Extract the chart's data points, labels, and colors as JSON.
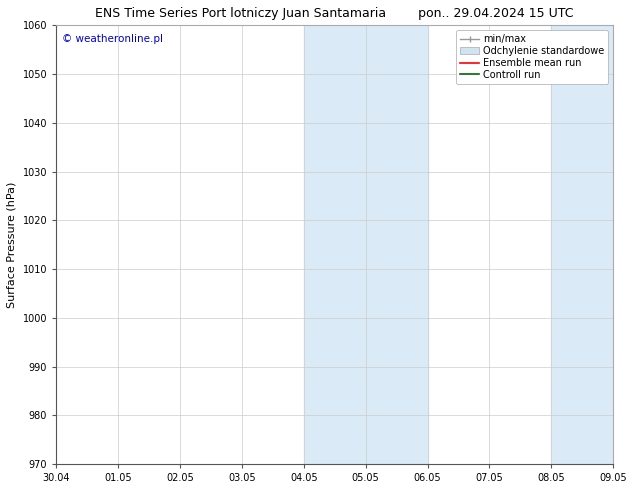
{
  "title_left": "ENS Time Series Port lotniczy Juan Santamaria",
  "title_right": "pon.. 29.04.2024 15 UTC",
  "ylabel": "Surface Pressure (hPa)",
  "ylim": [
    970,
    1060
  ],
  "yticks": [
    970,
    980,
    990,
    1000,
    1010,
    1020,
    1030,
    1040,
    1050,
    1060
  ],
  "xtick_labels": [
    "30.04",
    "01.05",
    "02.05",
    "03.05",
    "04.05",
    "05.05",
    "06.05",
    "07.05",
    "08.05",
    "09.05"
  ],
  "shaded_regions": [
    {
      "start": "2024-05-04",
      "end": "2024-05-06"
    },
    {
      "start": "2024-05-08",
      "end": "2024-05-09"
    }
  ],
  "shaded_color": "#daeaf7",
  "watermark_text": "© weatheronline.pl",
  "watermark_color": "#0000cc",
  "legend_entries": [
    {
      "label": "min/max"
    },
    {
      "label": "Odchylenie standardowe"
    },
    {
      "label": "Ensemble mean run"
    },
    {
      "label": "Controll run"
    }
  ],
  "bg_color": "#ffffff",
  "grid_color": "#cccccc",
  "title_fontsize": 9,
  "tick_fontsize": 7,
  "ylabel_fontsize": 8,
  "legend_fontsize": 7,
  "watermark_fontsize": 7.5
}
